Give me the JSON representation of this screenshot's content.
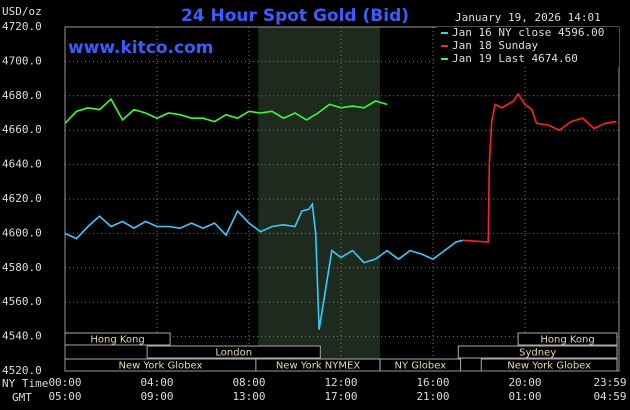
{
  "chart_data": {
    "type": "line",
    "title": "24 Hour Spot Gold (Bid)",
    "unit_label": "USD/oz",
    "date": "January 19, 2026 14:01",
    "watermark": "www.kitco.com",
    "x_axis_label": "NY Time",
    "x2_axis_label": "GMT",
    "xlim": [
      0,
      24
    ],
    "xticks": [
      {
        "value": 0,
        "label": "00:00"
      },
      {
        "value": 4,
        "label": "04:00"
      },
      {
        "value": 8,
        "label": "08:00"
      },
      {
        "value": 12,
        "label": "12:00"
      },
      {
        "value": 16,
        "label": "16:00"
      },
      {
        "value": 20,
        "label": "20:00"
      },
      {
        "value": 23.98,
        "label": "23:59"
      }
    ],
    "gmt_labels": [
      "05:00",
      "09:00",
      "13:00",
      "17:00",
      "21:00",
      "01:00",
      "04:59"
    ],
    "ylim": [
      4520,
      4720
    ],
    "yticks": [
      {
        "value": 4520,
        "label": "4520.0"
      },
      {
        "value": 4540,
        "label": "4540.0"
      },
      {
        "value": 4560,
        "label": "4560.0"
      },
      {
        "value": 4580,
        "label": "4580.0"
      },
      {
        "value": 4600,
        "label": "4600.0"
      },
      {
        "value": 4620,
        "label": "4620.0"
      },
      {
        "value": 4640,
        "label": "4640.0"
      },
      {
        "value": 4660,
        "label": "4660.0"
      },
      {
        "value": 4680,
        "label": "4680.0"
      },
      {
        "value": 4700,
        "label": "4700.0"
      },
      {
        "value": 4720,
        "label": "4720.0"
      }
    ],
    "grid": true,
    "shaded_range": [
      8.4,
      13.7
    ],
    "series": [
      {
        "name": "Jan 16 NY close 4596.00",
        "color": "#33ccff",
        "x": [
          0,
          0.5,
          1,
          1.5,
          2,
          2.5,
          3,
          3.5,
          4,
          4.5,
          5,
          5.5,
          6,
          6.5,
          7,
          7.5,
          8,
          8.5,
          9,
          9.5,
          10,
          10.3,
          10.6,
          10.75,
          10.9,
          11.05,
          11.3,
          11.6,
          12,
          12.5,
          13,
          13.5,
          14,
          14.5,
          15,
          15.5,
          16,
          16.5,
          17,
          17.3
        ],
        "values": [
          4600,
          4597,
          4604,
          4610,
          4604,
          4607,
          4603,
          4607,
          4604,
          4604,
          4603,
          4606,
          4603,
          4606,
          4599,
          4613,
          4606,
          4601,
          4604,
          4605,
          4604,
          4613,
          4614,
          4617,
          4600,
          4544,
          4565,
          4590,
          4586,
          4590,
          4583,
          4585,
          4590,
          4585,
          4590,
          4588,
          4585,
          4590,
          4595,
          4596
        ]
      },
      {
        "name": "Jan 18 Sunday",
        "color": "#ff2222",
        "x": [
          17.3,
          18.4,
          18.45,
          18.55,
          18.7,
          19,
          19.5,
          19.7,
          20,
          20.3,
          20.5,
          21,
          21.5,
          22,
          22.5,
          23,
          23.5,
          23.98
        ],
        "values": [
          4596,
          4595,
          4640,
          4665,
          4675,
          4673,
          4677,
          4681,
          4675,
          4672,
          4664,
          4663,
          4660,
          4665,
          4667,
          4661,
          4664,
          4665
        ]
      },
      {
        "name": "Jan 19 Last 4674.60",
        "color": "#33ff33",
        "x": [
          0,
          0.5,
          1,
          1.5,
          2,
          2.5,
          3,
          3.5,
          4,
          4.5,
          5,
          5.5,
          6,
          6.5,
          7,
          7.5,
          8,
          8.5,
          9,
          9.5,
          10,
          10.5,
          11,
          11.5,
          12,
          12.5,
          13,
          13.5,
          14
        ],
        "values": [
          4664,
          4671,
          4673,
          4672,
          4678,
          4666,
          4672,
          4670,
          4667,
          4670,
          4669,
          4667,
          4667,
          4665,
          4669,
          4667,
          4671,
          4670,
          4671,
          4667,
          4670,
          4666,
          4670,
          4675,
          4673,
          4674,
          4673,
          4677,
          4675
        ]
      }
    ],
    "sessions": [
      {
        "label": "Hong Kong",
        "start": 0,
        "end": 4.57,
        "row": 0
      },
      {
        "label": "Hong Kong",
        "start": 19.7,
        "end": 24,
        "row": 0
      },
      {
        "label": "London",
        "start": 3.57,
        "end": 11.1,
        "row": 1
      },
      {
        "label": "Sydney",
        "start": 17.1,
        "end": 24,
        "row": 1
      },
      {
        "label": "New York Globex",
        "start": 0,
        "end": 8.3,
        "row": 2
      },
      {
        "label": "New York NYMEX",
        "start": 8.3,
        "end": 13.7,
        "row": 2
      },
      {
        "label": "NY Globex",
        "start": 13.7,
        "end": 17.2,
        "row": 2
      },
      {
        "label": "New York Globex",
        "start": 18.1,
        "end": 24,
        "row": 2
      }
    ]
  }
}
